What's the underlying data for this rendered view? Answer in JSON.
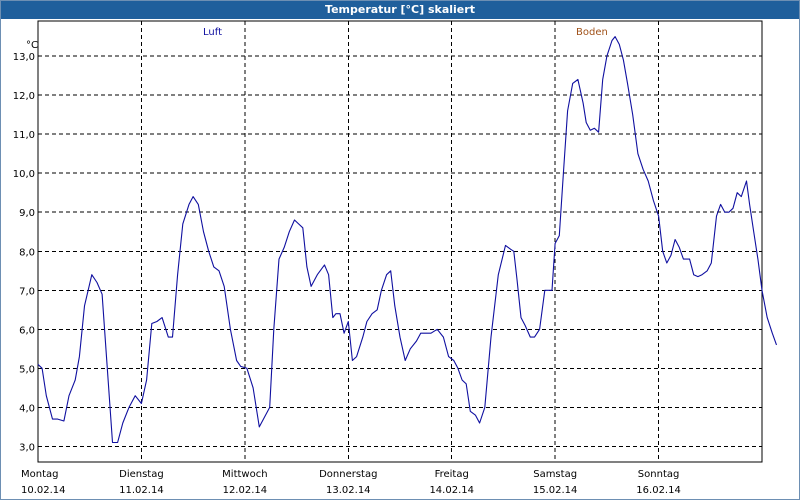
{
  "window": {
    "title": "Temperatur [°C] skaliert"
  },
  "colors": {
    "luft": "#1010a0",
    "boden": "#a0521a",
    "grid": "#000000",
    "title_bg": "#1f5f9c"
  },
  "chart_data": {
    "type": "line",
    "title": "Temperatur [°C] skaliert",
    "ylabel": "°C",
    "xlabel": "",
    "ylim": [
      2.6,
      13.9
    ],
    "xlim": [
      0,
      7
    ],
    "yticks": [
      "3,0",
      "4,0",
      "5,0",
      "6,0",
      "7,0",
      "8,0",
      "9,0",
      "10,0",
      "11,0",
      "12,0",
      "13,0"
    ],
    "ytick_values": [
      3,
      4,
      5,
      6,
      7,
      8,
      9,
      10,
      11,
      12,
      13
    ],
    "days": [
      {
        "name": "Montag",
        "date": "10.02.14"
      },
      {
        "name": "Dienstag",
        "date": "11.02.14"
      },
      {
        "name": "Mittwoch",
        "date": "12.02.14"
      },
      {
        "name": "Donnerstag",
        "date": "13.02.14"
      },
      {
        "name": "Freitag",
        "date": "14.02.14"
      },
      {
        "name": "Samstag",
        "date": "15.02.14"
      },
      {
        "name": "Sonntag",
        "date": "16.02.14"
      }
    ],
    "legend": [
      "Luft",
      "Boden"
    ],
    "series": [
      {
        "name": "Luft",
        "points": [
          [
            0.0,
            5.1
          ],
          [
            0.04,
            5.0
          ],
          [
            0.08,
            4.3
          ],
          [
            0.14,
            3.7
          ],
          [
            0.19,
            3.7
          ],
          [
            0.25,
            3.65
          ],
          [
            0.3,
            4.3
          ],
          [
            0.36,
            4.7
          ],
          [
            0.4,
            5.3
          ],
          [
            0.45,
            6.6
          ],
          [
            0.52,
            7.4
          ],
          [
            0.57,
            7.2
          ],
          [
            0.62,
            6.9
          ],
          [
            0.67,
            5.0
          ],
          [
            0.72,
            3.1
          ],
          [
            0.77,
            3.1
          ],
          [
            0.82,
            3.6
          ],
          [
            0.88,
            4.0
          ],
          [
            0.94,
            4.3
          ],
          [
            1.0,
            4.1
          ],
          [
            1.05,
            4.7
          ],
          [
            1.1,
            6.15
          ],
          [
            1.15,
            6.2
          ],
          [
            1.2,
            6.3
          ],
          [
            1.26,
            5.8
          ],
          [
            1.3,
            5.8
          ],
          [
            1.35,
            7.4
          ],
          [
            1.4,
            8.7
          ],
          [
            1.46,
            9.2
          ],
          [
            1.5,
            9.4
          ],
          [
            1.55,
            9.2
          ],
          [
            1.6,
            8.5
          ],
          [
            1.65,
            8.0
          ],
          [
            1.7,
            7.6
          ],
          [
            1.75,
            7.5
          ],
          [
            1.8,
            7.1
          ],
          [
            1.86,
            6.0
          ],
          [
            1.92,
            5.2
          ],
          [
            1.96,
            5.05
          ],
          [
            2.02,
            5.0
          ],
          [
            2.08,
            4.5
          ],
          [
            2.14,
            3.5
          ],
          [
            2.2,
            3.8
          ],
          [
            2.24,
            4.0
          ],
          [
            2.28,
            6.0
          ],
          [
            2.33,
            7.8
          ],
          [
            2.38,
            8.1
          ],
          [
            2.43,
            8.5
          ],
          [
            2.48,
            8.8
          ],
          [
            2.52,
            8.7
          ],
          [
            2.56,
            8.6
          ],
          [
            2.6,
            7.6
          ],
          [
            2.64,
            7.1
          ],
          [
            2.7,
            7.4
          ],
          [
            2.77,
            7.65
          ],
          [
            2.81,
            7.4
          ],
          [
            2.85,
            6.3
          ],
          [
            2.88,
            6.4
          ],
          [
            2.92,
            6.4
          ],
          [
            2.96,
            5.9
          ],
          [
            3.0,
            6.2
          ],
          [
            3.04,
            5.2
          ],
          [
            3.08,
            5.3
          ],
          [
            3.14,
            5.8
          ],
          [
            3.18,
            6.2
          ],
          [
            3.23,
            6.4
          ],
          [
            3.28,
            6.5
          ],
          [
            3.32,
            7.0
          ],
          [
            3.37,
            7.4
          ],
          [
            3.41,
            7.5
          ],
          [
            3.45,
            6.6
          ],
          [
            3.5,
            5.8
          ],
          [
            3.55,
            5.2
          ],
          [
            3.6,
            5.5
          ],
          [
            3.66,
            5.7
          ],
          [
            3.7,
            5.9
          ],
          [
            3.75,
            5.9
          ],
          [
            3.8,
            5.9
          ],
          [
            3.86,
            6.0
          ],
          [
            3.92,
            5.8
          ],
          [
            3.97,
            5.3
          ],
          [
            4.02,
            5.2
          ],
          [
            4.06,
            5.0
          ],
          [
            4.1,
            4.7
          ],
          [
            4.14,
            4.6
          ],
          [
            4.18,
            3.9
          ],
          [
            4.23,
            3.8
          ],
          [
            4.27,
            3.6
          ],
          [
            4.32,
            4.0
          ],
          [
            4.38,
            5.8
          ],
          [
            4.45,
            7.4
          ],
          [
            4.52,
            8.15
          ],
          [
            4.57,
            8.05
          ],
          [
            4.6,
            8.0
          ],
          [
            4.63,
            7.3
          ],
          [
            4.67,
            6.3
          ],
          [
            4.71,
            6.1
          ],
          [
            4.76,
            5.8
          ],
          [
            4.8,
            5.8
          ],
          [
            4.85,
            6.0
          ],
          [
            4.9,
            7.0
          ],
          [
            4.94,
            7.0
          ],
          [
            4.97,
            7.0
          ],
          [
            5.0,
            8.2
          ],
          [
            5.04,
            8.4
          ],
          [
            5.08,
            10.0
          ],
          [
            5.12,
            11.6
          ],
          [
            5.17,
            12.3
          ],
          [
            5.22,
            12.4
          ],
          [
            5.27,
            11.8
          ],
          [
            5.3,
            11.3
          ],
          [
            5.34,
            11.1
          ],
          [
            5.38,
            11.15
          ],
          [
            5.42,
            11.05
          ],
          [
            5.46,
            12.4
          ],
          [
            5.5,
            13.0
          ],
          [
            5.55,
            13.4
          ],
          [
            5.58,
            13.5
          ],
          [
            5.62,
            13.3
          ],
          [
            5.66,
            12.9
          ],
          [
            5.7,
            12.3
          ],
          [
            5.75,
            11.5
          ],
          [
            5.8,
            10.5
          ],
          [
            5.85,
            10.1
          ],
          [
            5.9,
            9.8
          ],
          [
            5.95,
            9.3
          ],
          [
            6.0,
            8.9
          ],
          [
            6.04,
            8.0
          ],
          [
            6.08,
            7.7
          ],
          [
            6.12,
            7.9
          ],
          [
            6.16,
            8.3
          ],
          [
            6.2,
            8.1
          ],
          [
            6.24,
            7.8
          ],
          [
            6.3,
            7.8
          ],
          [
            6.34,
            7.4
          ],
          [
            6.38,
            7.35
          ],
          [
            6.42,
            7.4
          ],
          [
            6.47,
            7.5
          ],
          [
            6.51,
            7.7
          ],
          [
            6.56,
            8.9
          ],
          [
            6.6,
            9.2
          ],
          [
            6.64,
            9.0
          ],
          [
            6.68,
            9.0
          ],
          [
            6.72,
            9.1
          ],
          [
            6.76,
            9.5
          ],
          [
            6.8,
            9.4
          ],
          [
            6.85,
            9.8
          ],
          [
            6.88,
            9.2
          ],
          [
            6.92,
            8.5
          ],
          [
            6.96,
            7.8
          ],
          [
            7.0,
            7.0
          ],
          [
            7.05,
            6.3
          ],
          [
            7.1,
            5.9
          ],
          [
            7.14,
            5.6
          ]
        ]
      },
      {
        "name": "Boden",
        "points": []
      }
    ]
  }
}
